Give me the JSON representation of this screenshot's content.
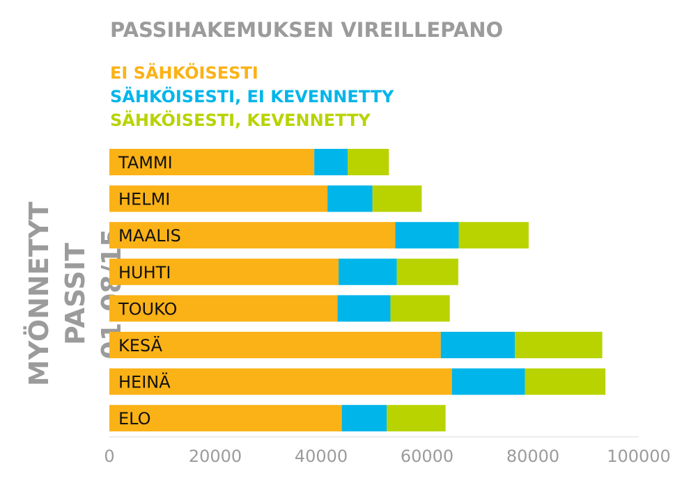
{
  "chart_data": {
    "type": "bar",
    "orientation": "horizontal",
    "stacked": true,
    "title": "PASSIHAKEMUKSEN VIREILLEPANO",
    "ylabel_line1": "MYÖNNETYT PASSIT",
    "ylabel_line2": "01-08/15",
    "categories": [
      "TAMMI",
      "HELMI",
      "MAALIS",
      "HUHTI",
      "TOUKO",
      "KESÄ",
      "HEINÄ",
      "ELO"
    ],
    "series": [
      {
        "name": "EI SÄHKÖISESTI",
        "color": "#fbb217",
        "values": [
          38700,
          41200,
          54000,
          43300,
          43100,
          62600,
          64700,
          43900
        ]
      },
      {
        "name": "SÄHKÖISESTI, EI KEVENNETTY",
        "color": "#00b5ea",
        "values": [
          6300,
          8500,
          12000,
          11000,
          10000,
          14000,
          13800,
          8500
        ]
      },
      {
        "name": "SÄHKÖISESTI, KEVENNETTY",
        "color": "#b8d300",
        "values": [
          7800,
          9300,
          13200,
          11600,
          11200,
          16500,
          15200,
          11100
        ]
      }
    ],
    "xlim": [
      0,
      100000
    ],
    "xticks": [
      "0",
      "20000",
      "40000",
      "60000",
      "80000",
      "100000"
    ],
    "grid": false,
    "legend_position": "top-left"
  }
}
